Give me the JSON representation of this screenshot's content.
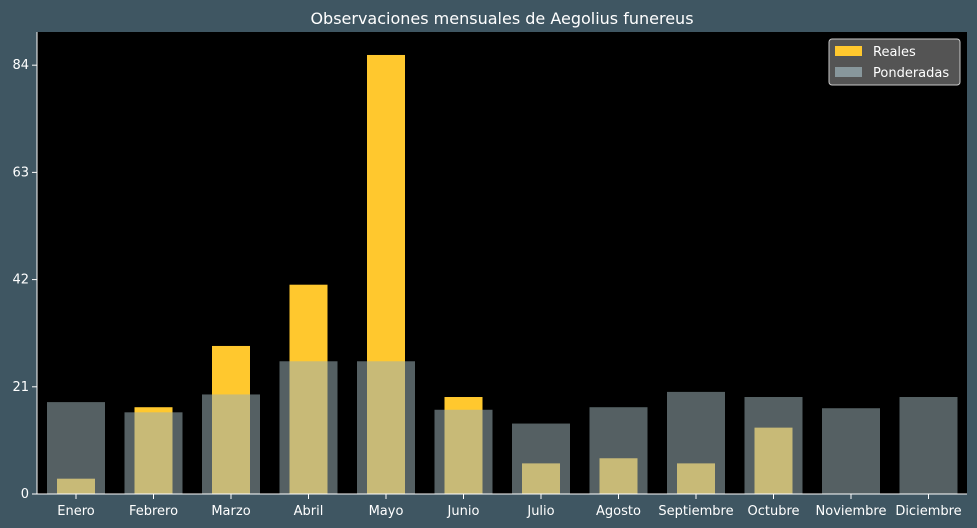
{
  "chart_data": {
    "type": "bar",
    "title": "Observaciones mensuales de Aegolius funereus",
    "xlabel": "",
    "ylabel": "",
    "categories": [
      "Enero",
      "Febrero",
      "Marzo",
      "Abril",
      "Mayo",
      "Junio",
      "Julio",
      "Agosto",
      "Septiembre",
      "Octubre",
      "Noviembre",
      "Diciembre"
    ],
    "series": [
      {
        "name": "Reales",
        "values": [
          3,
          17,
          29,
          41,
          86,
          19,
          6,
          7,
          6,
          13,
          0,
          0
        ],
        "color": "#ffc82e"
      },
      {
        "name": "Ponderadas",
        "values": [
          18,
          16,
          19.5,
          26,
          26,
          16.5,
          13.8,
          17,
          20,
          19,
          16.8,
          19
        ],
        "color": "#9aaeb4",
        "opacity": 0.55
      }
    ],
    "ylim": [
      0,
      90.5
    ],
    "yticks": [
      0,
      21,
      42,
      63,
      84
    ],
    "legend_position": "top-right",
    "grid": false,
    "colors": {
      "figure_bg": "#3f5662",
      "plot_bg": "#000000",
      "text": "#ffffff",
      "legend_bg": "#545454",
      "legend_border": "#c8c8c8"
    }
  }
}
